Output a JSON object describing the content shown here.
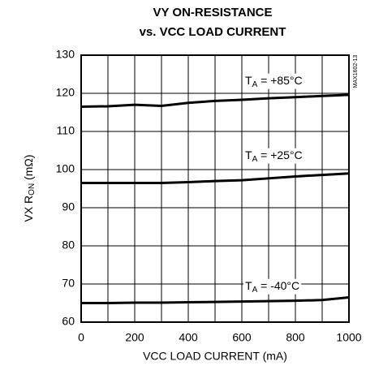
{
  "chart_data": {
    "type": "line",
    "title": [
      "VY ON-RESISTANCE",
      "vs. VCC LOAD CURRENT"
    ],
    "ylabel": {
      "main": "VX R",
      "sub": "ON",
      "rest": " (mΩ)"
    },
    "xlabel": "VCC LOAD CURRENT (mA)",
    "code": "MAX1602-13",
    "x": [
      0,
      100,
      200,
      300,
      400,
      500,
      600,
      700,
      800,
      900,
      1000
    ],
    "series": [
      {
        "label": {
          "main": "T",
          "sub": "A",
          "rest": " = +85°C"
        },
        "color": "#000000",
        "values": [
          116.5,
          116.6,
          117,
          116.7,
          117.5,
          118,
          118.3,
          118.7,
          119,
          119.3,
          119.6
        ]
      },
      {
        "label": {
          "main": "T",
          "sub": "A",
          "rest": " = +25°C"
        },
        "color": "#000000",
        "values": [
          96.5,
          96.5,
          96.5,
          96.5,
          96.7,
          97,
          97.2,
          97.7,
          98.2,
          98.6,
          99
        ]
      },
      {
        "label": {
          "main": "T",
          "sub": "A",
          "rest": " = -40°C"
        },
        "color": "#000000",
        "values": [
          65,
          65,
          65.1,
          65.1,
          65.2,
          65.3,
          65.4,
          65.5,
          65.6,
          65.8,
          66.5
        ]
      }
    ],
    "xlim": [
      0,
      1000
    ],
    "xticks": [
      0,
      200,
      400,
      600,
      800,
      1000
    ],
    "xminor": [
      100,
      300,
      500,
      700,
      900
    ],
    "ylim": [
      60,
      130
    ],
    "yticks": [
      60,
      70,
      80,
      90,
      100,
      110,
      120,
      130
    ],
    "grid": true
  }
}
